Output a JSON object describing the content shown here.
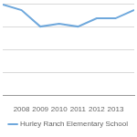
{
  "chart_data": {
    "type": "line",
    "categories": [
      null,
      "2008",
      "2009",
      "2010",
      "2011",
      "2012",
      "2013",
      null
    ],
    "series": [
      {
        "name": "Hurley Ranch Elementary School",
        "color": "#6fa8dc",
        "values": [
          99,
          93,
          75,
          78,
          75,
          84,
          84,
          93
        ],
        "marker": "none",
        "line_style": "solid"
      }
    ],
    "ylim": [
      0,
      100
    ],
    "yticks": [
      0,
      25,
      50,
      75,
      100
    ],
    "grid": true,
    "legend": "bottom",
    "tick_labels": "x"
  }
}
